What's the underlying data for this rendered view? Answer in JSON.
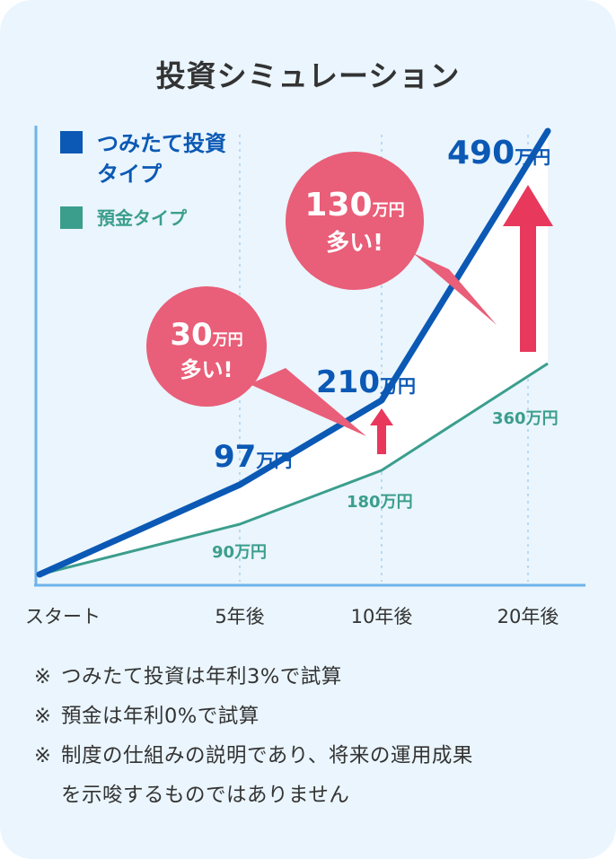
{
  "title": "投資シミュレーション",
  "chart_data": {
    "type": "line",
    "categories": [
      "スタート",
      "5年後",
      "10年後",
      "20年後"
    ],
    "series": [
      {
        "name": "つみたて投資タイプ",
        "values": [
          0,
          97,
          210,
          490
        ],
        "labels": [
          "",
          "97",
          "210",
          "490"
        ],
        "color": "#0B59B5"
      },
      {
        "name": "預金タイプ",
        "values": [
          0,
          90,
          180,
          360
        ],
        "labels": [
          "",
          "90",
          "180",
          "360"
        ],
        "color": "#3B9E8D"
      }
    ],
    "unit": "万円",
    "legend_position": "top-left",
    "grid": "vertical-dotted",
    "callouts": [
      {
        "amount": "30",
        "unit": "万円",
        "text": "多い!",
        "color": "#E95E78"
      },
      {
        "amount": "130",
        "unit": "万円",
        "text": "多い!",
        "color": "#E95E78"
      }
    ],
    "arrow_color": "#E8385C"
  },
  "legend": {
    "invest_line1": "つみたて投資",
    "invest_line2": "タイプ",
    "deposit": "預金タイプ"
  },
  "notes": [
    "※つみたて投資は年利3%で試算",
    "※預金は年利0%で試算",
    "※制度の仕組みの説明であり、将来の運用成果を示唆するものではありません"
  ],
  "notes_display": {
    "n1": "つみたて投資は年利3%で試算",
    "n2": "預金は年利0%で試算",
    "n3a": "制度の仕組みの説明であり、将来の運用成果",
    "n3b": "を示唆するものではありません",
    "mark": "※"
  },
  "colors": {
    "background": "#EAF5FD",
    "axis": "#6FB3EA",
    "invest": "#0B59B5",
    "deposit": "#3B9E8D",
    "callout": "#E95E78",
    "arrow": "#E8385C"
  }
}
